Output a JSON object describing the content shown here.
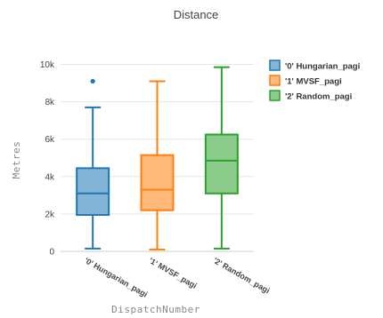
{
  "chart_data": {
    "type": "box",
    "title": "Distance",
    "xlabel": "DispatchNumber",
    "ylabel": "Metres",
    "ylim": [
      0,
      10500
    ],
    "yticks": [
      0,
      2000,
      4000,
      6000,
      8000,
      10000
    ],
    "ytick_labels": [
      "0",
      "2k",
      "4k",
      "6k",
      "8k",
      "10k"
    ],
    "grid": true,
    "legend_position": "top-right",
    "categories": [
      "'0' Hungarian_pagi",
      "'1' MVSF_pagi",
      "'2' Random_pagi"
    ],
    "series": [
      {
        "name": "'0' Hungarian_pagi",
        "color": "#1f77b4",
        "min": 150,
        "q1": 1950,
        "median": 3100,
        "q3": 4450,
        "max": 7700,
        "outliers": [
          9100
        ]
      },
      {
        "name": "'1' MVSF_pagi",
        "color": "#ff7f0e",
        "min": 100,
        "q1": 2200,
        "median": 3300,
        "q3": 5150,
        "max": 9100,
        "outliers": []
      },
      {
        "name": "'2' Random_pagi",
        "color": "#2ca02c",
        "min": 150,
        "q1": 3100,
        "median": 4850,
        "q3": 6250,
        "max": 9850,
        "outliers": []
      }
    ]
  }
}
